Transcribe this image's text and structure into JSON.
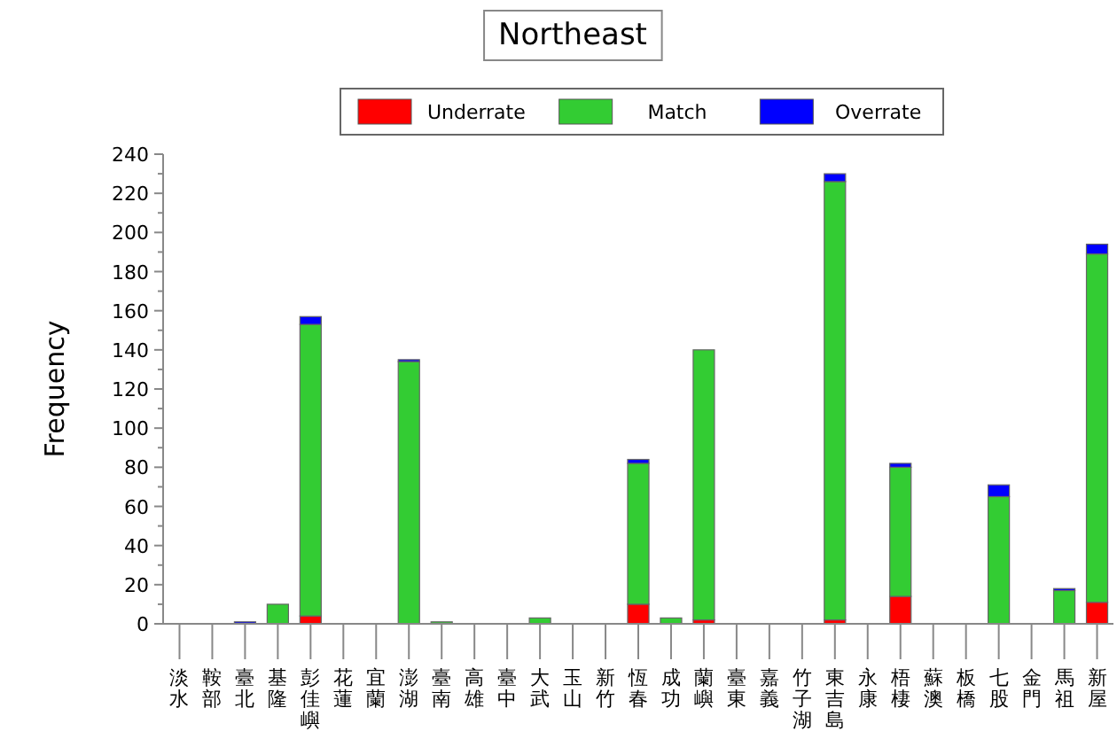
{
  "chart_data": {
    "type": "bar",
    "title": "Northeast",
    "ylabel": "Frequency",
    "stacked": true,
    "legend": "top",
    "grid": false,
    "categories": [
      "淡水",
      "鞍部",
      "臺北",
      "基隆",
      "彭佳嶼",
      "花蓮",
      "宜蘭",
      "澎湖",
      "臺南",
      "高雄",
      "臺中",
      "大武",
      "玉山",
      "新竹",
      "恆春",
      "成功",
      "蘭嶼",
      "臺東",
      "嘉義",
      "竹子湖",
      "東吉島",
      "永康",
      "梧棲",
      "蘇澳",
      "板橋",
      "七股",
      "金門",
      "馬祖",
      "新屋"
    ],
    "series": [
      {
        "name": "Underrate",
        "color": "#ff0000",
        "values": [
          0,
          0,
          0,
          0,
          4,
          0,
          0,
          0,
          0,
          0,
          0,
          0,
          0,
          0,
          10,
          0,
          2,
          0,
          0,
          0,
          2,
          0,
          14,
          0,
          0,
          null,
          0,
          0,
          11
        ]
      },
      {
        "name": "Match",
        "color": "#33cc33",
        "values": [
          0,
          0,
          0,
          10,
          149,
          0,
          0,
          134,
          1,
          0,
          0,
          3,
          0,
          0,
          72,
          3,
          138,
          0,
          0,
          0,
          224,
          0,
          66,
          0,
          0,
          65,
          0,
          17,
          178
        ]
      },
      {
        "name": "Overrate",
        "color": "#0000ff",
        "values": [
          0,
          0,
          1,
          0,
          4,
          0,
          0,
          1,
          0,
          0,
          0,
          0,
          0,
          0,
          2,
          0,
          0,
          0,
          0,
          0,
          4,
          0,
          2,
          0,
          0,
          6,
          0,
          1,
          5
        ]
      }
    ],
    "ylim": [
      0,
      240
    ],
    "yticks": [
      0,
      20,
      40,
      60,
      80,
      100,
      120,
      140,
      160,
      180,
      200,
      220,
      240
    ]
  }
}
